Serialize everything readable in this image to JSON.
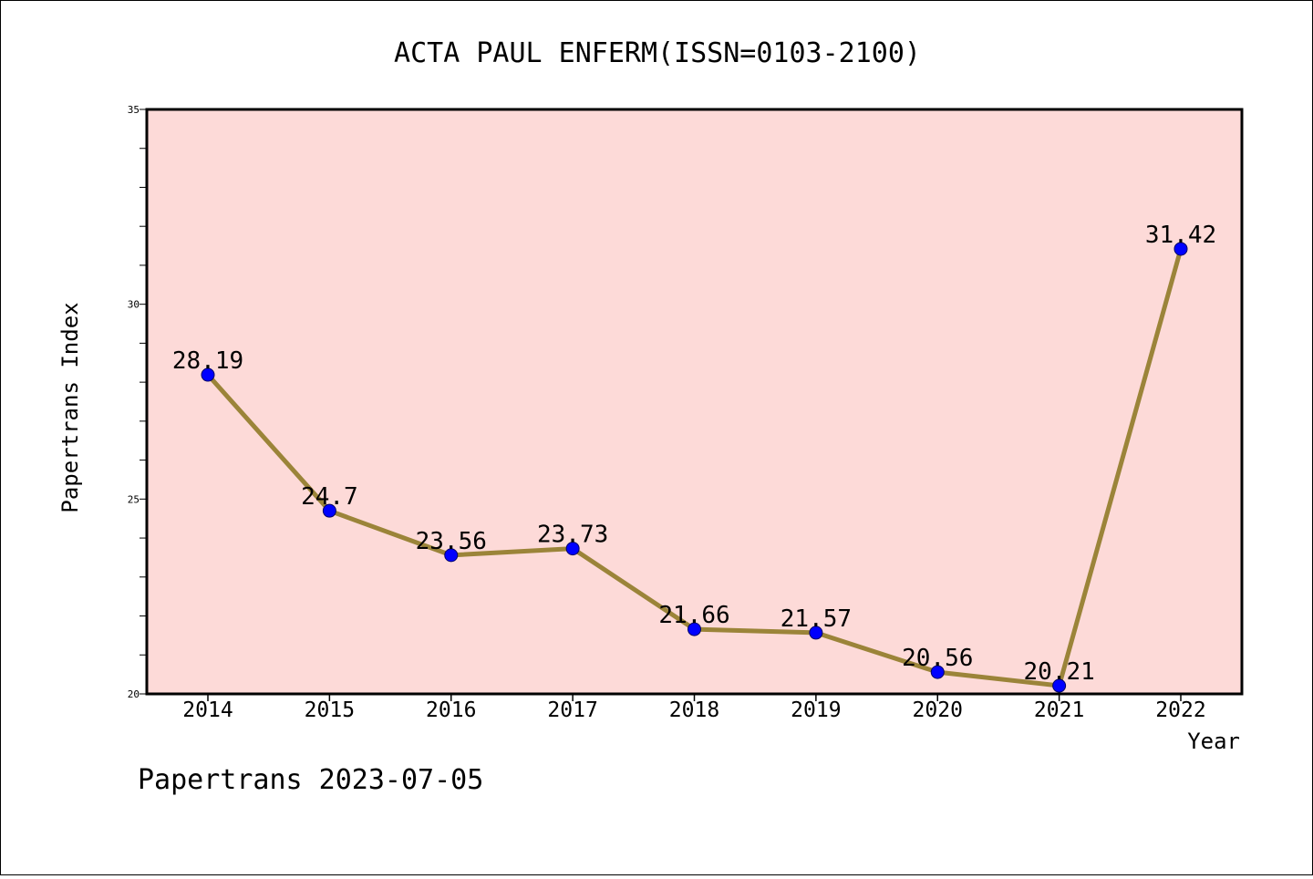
{
  "chart_data": {
    "type": "line",
    "title": "ACTA PAUL ENFERM(ISSN=0103-2100)",
    "xlabel": "Year",
    "ylabel": "Papertrans Index",
    "categories": [
      "2014",
      "2015",
      "2016",
      "2017",
      "2018",
      "2019",
      "2020",
      "2021",
      "2022"
    ],
    "series": [
      {
        "values": [
          28.19,
          24.7,
          23.56,
          23.73,
          21.66,
          21.57,
          20.56,
          20.21,
          31.42
        ],
        "labels": [
          "28.19",
          "24.7",
          "23.56",
          "23.73",
          "21.66",
          "21.57",
          "20.56",
          "20.21",
          "31.42"
        ]
      }
    ],
    "ylim": [
      20,
      35
    ],
    "yticks": [
      20,
      25,
      30,
      35
    ],
    "grid": false,
    "colors": {
      "plot_background": "#fddad8",
      "line": "#9b8439",
      "marker": "#0000ff"
    }
  },
  "footer": {
    "text": "Papertrans 2023-07-05"
  }
}
